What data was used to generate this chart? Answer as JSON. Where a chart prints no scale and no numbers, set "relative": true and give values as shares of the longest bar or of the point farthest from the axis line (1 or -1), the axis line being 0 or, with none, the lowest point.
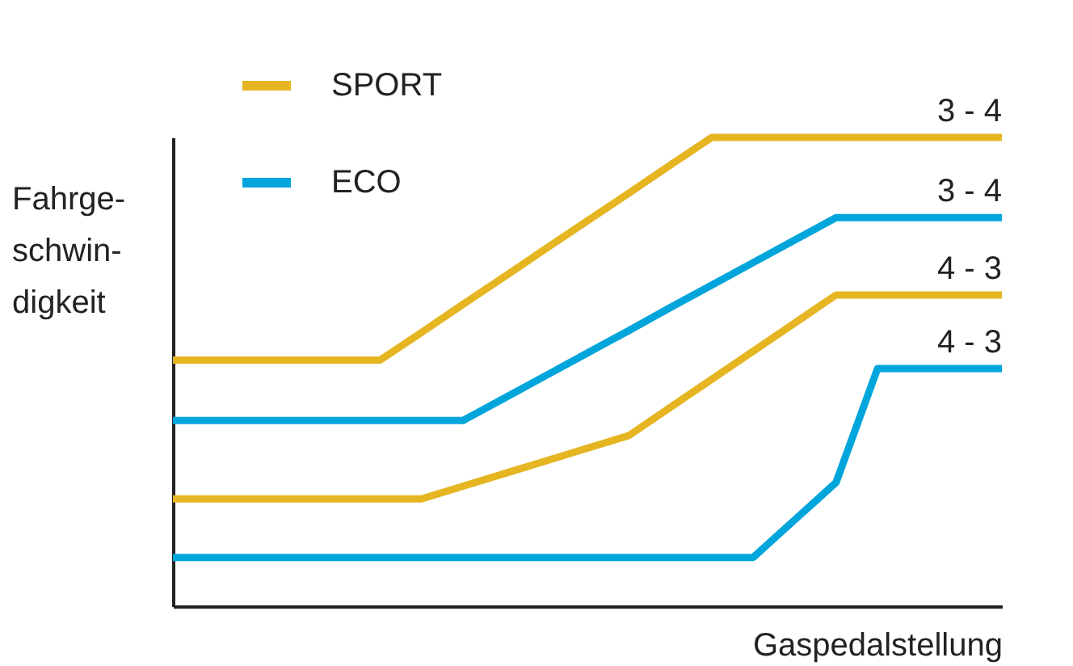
{
  "chart_data": {
    "type": "line",
    "relative": true,
    "xlabel": "Gaspedalstellung",
    "ylabel": "Fahrge-\nschwin-\ndigkeit",
    "legend": "top left",
    "categories": [
      null,
      null,
      null,
      null,
      null,
      null,
      null,
      null,
      null,
      null,
      null,
      null,
      null,
      null,
      null,
      null,
      null,
      null,
      null,
      null,
      null
    ],
    "series": [
      {
        "name": "SPORT",
        "color": "#e5b522",
        "values": [
          0.525,
          0.525,
          0.525,
          0.525,
          0.525,
          0.525,
          0.584,
          0.644,
          0.703,
          0.763,
          0.822,
          0.881,
          0.941,
          1,
          1,
          1,
          1,
          1,
          1,
          1,
          1
        ]
      },
      {
        "name": "ECO",
        "color": "#00a5dc",
        "values": [
          0.396,
          0.396,
          0.396,
          0.396,
          0.396,
          0.396,
          0.396,
          0.396,
          0.444,
          0.492,
          0.54,
          0.588,
          0.637,
          0.685,
          0.733,
          0.781,
          0.829,
          0.829,
          0.829,
          0.829,
          0.829
        ]
      },
      {
        "color": "#e5b522",
        "values": [
          0.229,
          0.229,
          0.229,
          0.229,
          0.229,
          0.229,
          0.229,
          0.256,
          0.283,
          0.31,
          0.337,
          0.364,
          0.424,
          0.484,
          0.544,
          0.604,
          0.664,
          0.664,
          0.664,
          0.664,
          0.664
        ]
      },
      {
        "color": "#00a5dc",
        "values": [
          0.104,
          0.104,
          0.104,
          0.104,
          0.104,
          0.104,
          0.104,
          0.104,
          0.104,
          0.104,
          0.104,
          0.104,
          0.104,
          0.104,
          0.104,
          0.184,
          0.264,
          0.507,
          0.507,
          0.507,
          0.507
        ]
      }
    ],
    "annotations": [
      {
        "text": "3 - 4",
        "y": 1
      },
      {
        "text": "3 - 4",
        "y": 0.829
      },
      {
        "text": "4 - 3",
        "y": 0.664
      },
      {
        "text": "4 - 3",
        "y": 0.507
      }
    ]
  }
}
